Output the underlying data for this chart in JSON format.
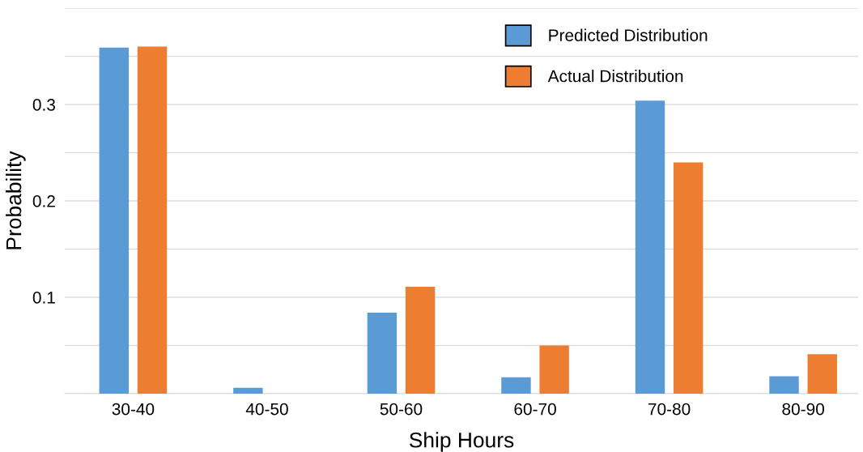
{
  "chart_data": {
    "type": "bar",
    "xlabel": "Ship Hours",
    "ylabel": "Probability",
    "categories": [
      "30-40",
      "40-50",
      "50-60",
      "60-70",
      "70-80",
      "80-90"
    ],
    "series": [
      {
        "name": "Predicted Distribution",
        "color": "#5b9bd5",
        "values": [
          0.359,
          0.006,
          0.084,
          0.017,
          0.304,
          0.018
        ]
      },
      {
        "name": "Actual Distribution",
        "color": "#ed7d31",
        "values": [
          0.36,
          0,
          0.111,
          0.05,
          0.24,
          0.041
        ]
      }
    ],
    "ylim": [
      0,
      0.4
    ],
    "yticks": [
      {
        "value": 0,
        "label": null
      },
      {
        "value": 0.05,
        "label": null
      },
      0.1,
      {
        "value": 0.15,
        "label": null
      },
      0.2,
      {
        "value": 0.25,
        "label": null
      },
      0.3,
      {
        "value": 0.35,
        "label": null
      },
      {
        "value": 0.4,
        "label": null
      }
    ],
    "grid": "y",
    "legend": "top right"
  }
}
